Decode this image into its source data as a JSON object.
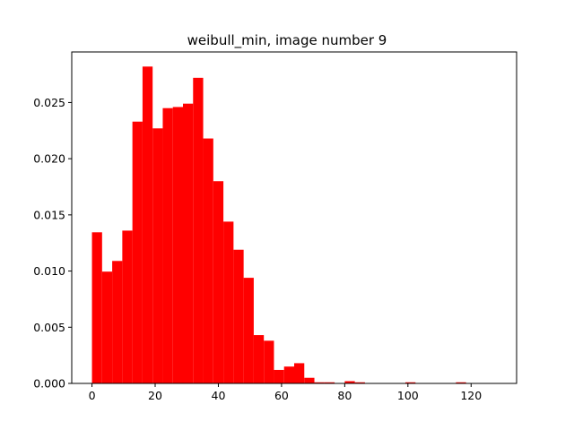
{
  "chart_data": {
    "type": "bar",
    "title": "weibull_min, image number 9",
    "xlabel": "",
    "ylabel": "",
    "xlim": [
      -6.4,
      134.4
    ],
    "ylim": [
      0,
      0.0295
    ],
    "xticks": [
      0,
      20,
      40,
      60,
      80,
      100,
      120
    ],
    "yticks": [
      "0.000",
      "0.005",
      "0.010",
      "0.015",
      "0.020",
      "0.025"
    ],
    "bar_color": "#ff0000",
    "bin_width": 3.2,
    "bin_start": 0,
    "values": [
      0.01345,
      0.00995,
      0.0109,
      0.0136,
      0.0233,
      0.0282,
      0.0227,
      0.0245,
      0.0246,
      0.0249,
      0.0272,
      0.0218,
      0.018,
      0.0144,
      0.0119,
      0.0094,
      0.0043,
      0.0038,
      0.0012,
      0.0015,
      0.0018,
      0.0005,
      0.0001,
      0.0001,
      0,
      0.0002,
      0.0001,
      0,
      0,
      0,
      0,
      0.0001,
      0,
      0,
      0,
      0,
      0.0001,
      0,
      0,
      0
    ]
  }
}
